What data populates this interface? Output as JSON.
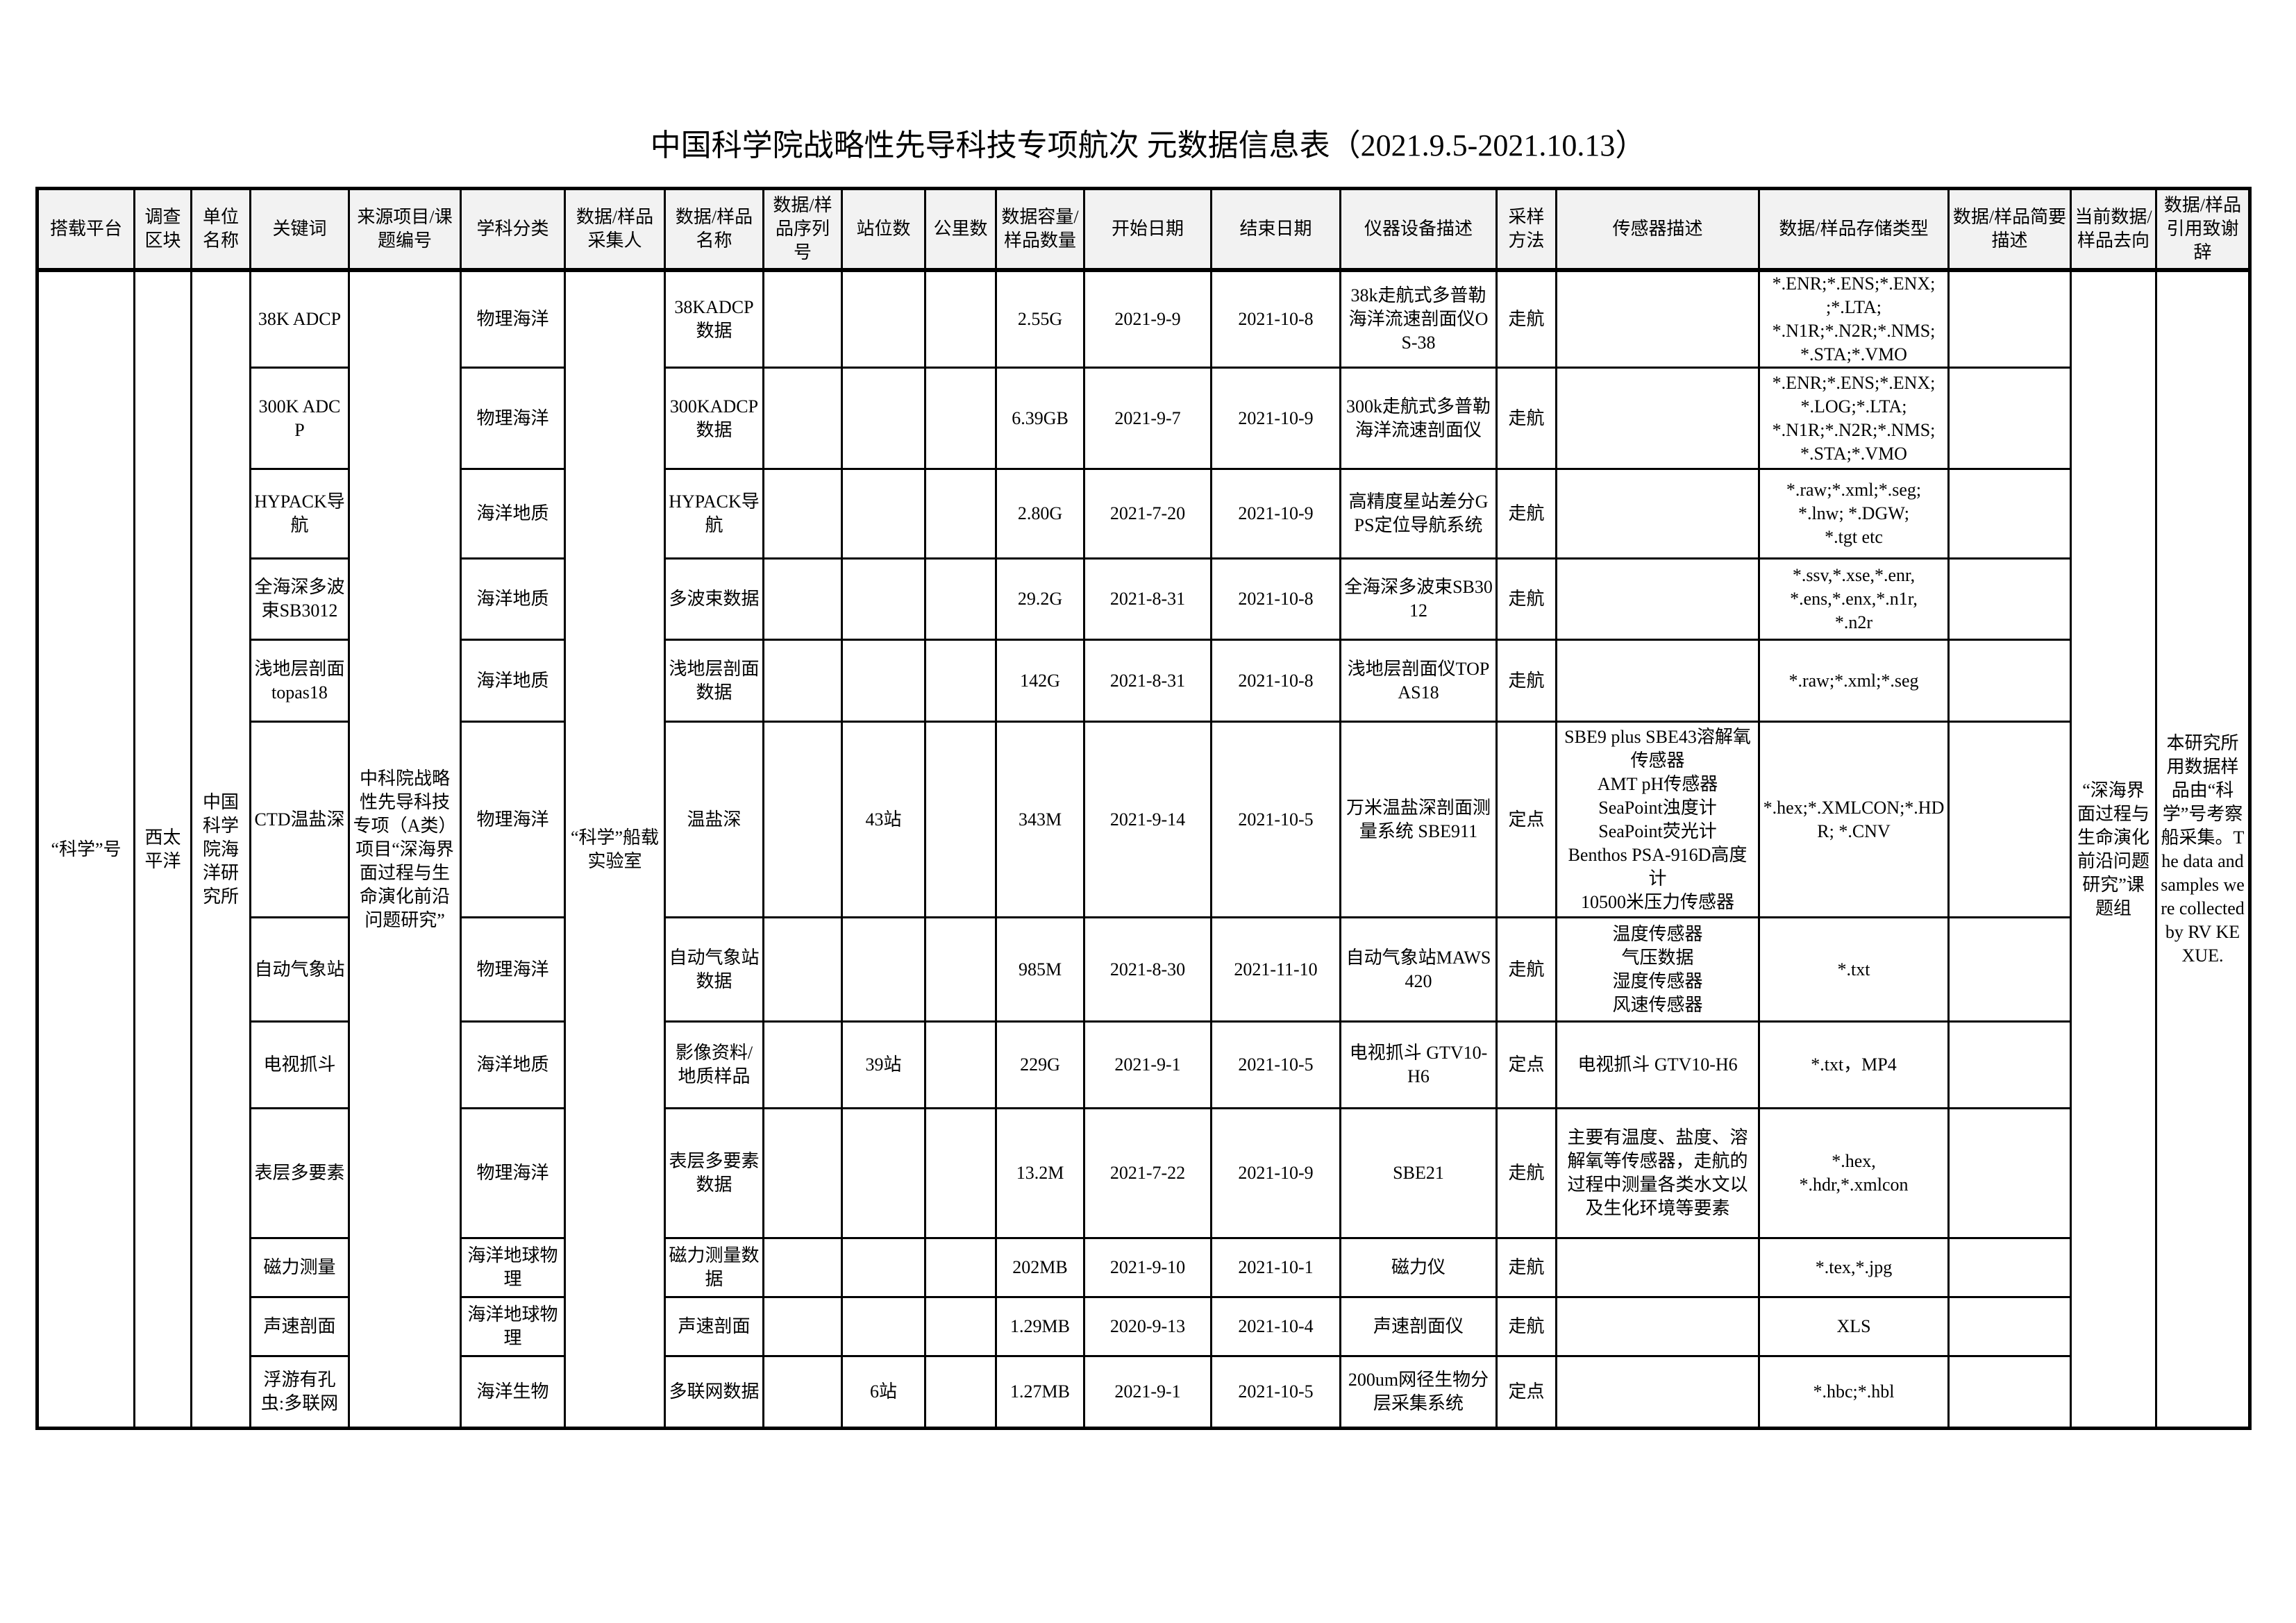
{
  "title": "中国科学院战略性先导科技专项航次 元数据信息表（2021.9.5-2021.10.13）",
  "headers": [
    "搭载平台",
    "调查区块",
    "单位名称",
    "关键词",
    "来源项目/课题编号",
    "学科分类",
    "数据/样品采集人",
    "数据/样品名称",
    "数据/样品序列号",
    "站位数",
    "公里数",
    "数据容量/样品数量",
    "开始日期",
    "结束日期",
    "仪器设备描述",
    "采样方法",
    "传感器描述",
    "数据/样品存储类型",
    "数据/样品简要描述",
    "当前数据/样品去向",
    "数据/样品引用致谢辞"
  ],
  "shared": {
    "platform": "“科学”号",
    "region": "西太平洋",
    "institution": "中国科学院海洋研究所",
    "source_project": "中科院战略性先导科技专项（A类）项目“深海界面过程与生命演化前沿问题研究”",
    "collector": "“科学”船载实验室",
    "destination": "“深海界面过程与生命演化前沿问题研究”课题组",
    "acknowledgement": "本研究所用数据样品由“科学”号考察船采集。The data and samples were collected by RV KEXUE."
  },
  "rows": [
    {
      "keyword": "38K ADCP",
      "discipline": "物理海洋",
      "data_name": "38KADCP数据",
      "serial": "",
      "stations": "",
      "km": "",
      "volume": "2.55G",
      "start": "2021-9-9",
      "end": "2021-10-8",
      "instrument": "38k走航式多普勒海洋流速剖面仪OS-38",
      "method": "走航",
      "sensor": "",
      "storage": "*.ENR;*.ENS;*.ENX;\n;*.LTA;\n*.N1R;*.N2R;*.NMS;\n*.STA;*.VMO",
      "description": ""
    },
    {
      "keyword": "300K ADCP",
      "discipline": "物理海洋",
      "data_name": "300KADCP数据",
      "serial": "",
      "stations": "",
      "km": "",
      "volume": "6.39GB",
      "start": "2021-9-7",
      "end": "2021-10-9",
      "instrument": "300k走航式多普勒海洋流速剖面仪",
      "method": "走航",
      "sensor": "",
      "storage": "*.ENR;*.ENS;*.ENX;\n*.LOG;*.LTA;\n*.N1R;*.N2R;*.NMS;\n*.STA;*.VMO",
      "description": ""
    },
    {
      "keyword": "HYPACK导航",
      "discipline": "海洋地质",
      "data_name": "HYPACK导航",
      "serial": "",
      "stations": "",
      "km": "",
      "volume": "2.80G",
      "start": "2021-7-20",
      "end": "2021-10-9",
      "instrument": "高精度星站差分GPS定位导航系统",
      "method": "走航",
      "sensor": "",
      "storage": "*.raw;*.xml;*.seg;\n*.lnw; *.DGW;\n*.tgt etc",
      "description": ""
    },
    {
      "keyword": "全海深多波束SB3012",
      "discipline": "海洋地质",
      "data_name": "多波束数据",
      "serial": "",
      "stations": "",
      "km": "",
      "volume": "29.2G",
      "start": "2021-8-31",
      "end": "2021-10-8",
      "instrument": "全海深多波束SB3012",
      "method": "走航",
      "sensor": "",
      "storage": "*.ssv,*.xse,*.enr,\n*.ens,*.enx,*.n1r,\n*.n2r",
      "description": ""
    },
    {
      "keyword": "浅地层剖面topas18",
      "discipline": "海洋地质",
      "data_name": "浅地层剖面数据",
      "serial": "",
      "stations": "",
      "km": "",
      "volume": "142G",
      "start": "2021-8-31",
      "end": "2021-10-8",
      "instrument": "浅地层剖面仪TOPAS18",
      "method": "走航",
      "sensor": "",
      "storage": "*.raw;*.xml;*.seg",
      "description": ""
    },
    {
      "keyword": "CTD温盐深",
      "discipline": "物理海洋",
      "data_name": "温盐深",
      "serial": "",
      "stations": "43站",
      "km": "",
      "volume": "343M",
      "start": "2021-9-14",
      "end": "2021-10-5",
      "instrument": "万米温盐深剖面测量系统 SBE911",
      "method": "定点",
      "sensor": "SBE9 plus SBE43溶解氧传感器\nAMT pH传感器\nSeaPoint浊度计\nSeaPoint荧光计\nBenthos PSA-916D高度计\n10500米压力传感器",
      "storage": "*.hex;*.XMLCON;*.HDR; *.CNV",
      "description": ""
    },
    {
      "keyword": "自动气象站",
      "discipline": "物理海洋",
      "data_name": "自动气象站数据",
      "serial": "",
      "stations": "",
      "km": "",
      "volume": "985M",
      "start": "2021-8-30",
      "end": "2021-11-10",
      "instrument": "自动气象站MAWS420",
      "method": "走航",
      "sensor": "温度传感器\n气压数据\n湿度传感器\n风速传感器",
      "storage": "*.txt",
      "description": ""
    },
    {
      "keyword": "电视抓斗",
      "discipline": "海洋地质",
      "data_name": "影像资料/地质样品",
      "serial": "",
      "stations": "39站",
      "km": "",
      "volume": "229G",
      "start": "2021-9-1",
      "end": "2021-10-5",
      "instrument": "电视抓斗 GTV10-H6",
      "method": "定点",
      "sensor": "电视抓斗 GTV10-H6",
      "storage": "*.txt，MP4",
      "description": ""
    },
    {
      "keyword": "表层多要素",
      "discipline": "物理海洋",
      "data_name": "表层多要素数据",
      "serial": "",
      "stations": "",
      "km": "",
      "volume": "13.2M",
      "start": "2021-7-22",
      "end": "2021-10-9",
      "instrument": "SBE21",
      "method": "走航",
      "sensor": "主要有温度、盐度、溶解氧等传感器，走航的过程中测量各类水文以及生化环境等要素",
      "storage": "*.hex,\n*.hdr,*.xmlcon",
      "description": ""
    },
    {
      "keyword": "磁力测量",
      "discipline": "海洋地球物理",
      "data_name": "磁力测量数据",
      "serial": "",
      "stations": "",
      "km": "",
      "volume": "202MB",
      "start": "2021-9-10",
      "end": "2021-10-1",
      "instrument": "磁力仪",
      "method": "走航",
      "sensor": "",
      "storage": "*.tex,*.jpg",
      "description": ""
    },
    {
      "keyword": "声速剖面",
      "discipline": "海洋地球物理",
      "data_name": "声速剖面",
      "serial": "",
      "stations": "",
      "km": "",
      "volume": "1.29MB",
      "start": "2020-9-13",
      "end": "2021-10-4",
      "instrument": "声速剖面仪",
      "method": "走航",
      "sensor": "",
      "storage": "XLS",
      "description": ""
    },
    {
      "keyword": "浮游有孔虫:多联网",
      "discipline": "海洋生物",
      "data_name": "多联网数据",
      "serial": "",
      "stations": "6站",
      "km": "",
      "volume": "1.27MB",
      "start": "2021-9-1",
      "end": "2021-10-5",
      "instrument": "200um网径生物分层采集系统",
      "method": "定点",
      "sensor": "",
      "storage": "*.hbc;*.hbl",
      "description": ""
    }
  ]
}
